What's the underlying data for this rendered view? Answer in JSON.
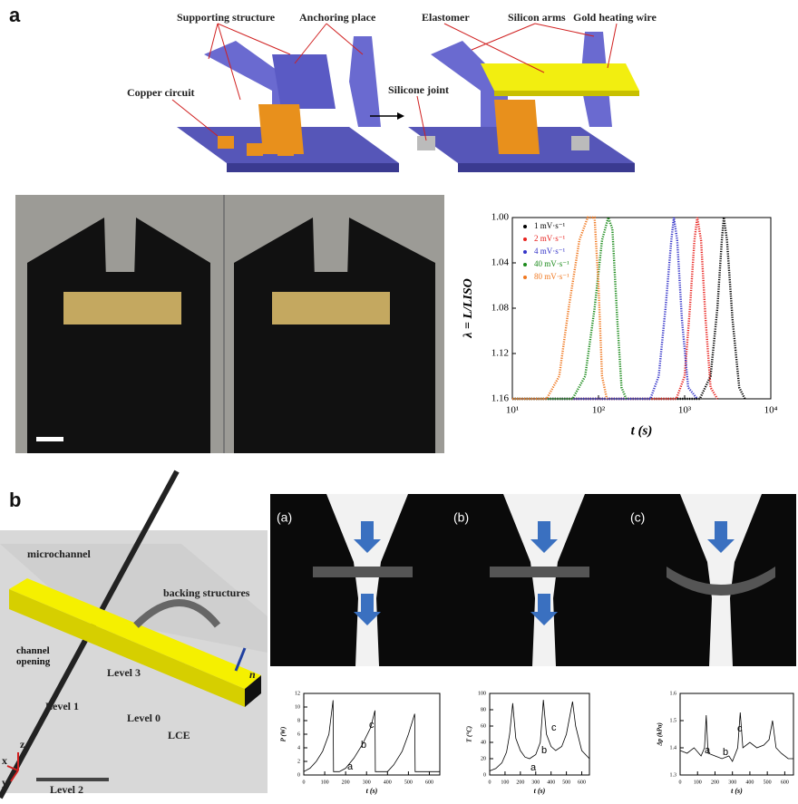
{
  "panel_a": {
    "label": "a",
    "labels": [
      "Supporting structure",
      "Anchoring place",
      "Copper circuit",
      "Elastomer",
      "Silicon arms",
      "Gold heating wire",
      "Silicone joint"
    ]
  },
  "panel_b": {
    "label": "b",
    "labels": [
      "microchannel",
      "backing structures",
      "channel opening",
      "Level 3",
      "Level 1",
      "Level 0",
      "Level 2",
      "LCE",
      "n",
      "x",
      "y",
      "z"
    ],
    "photo_labels": [
      "(a)",
      "(b)",
      "(c)"
    ]
  },
  "chart_data": [
    {
      "type": "line",
      "x_label": "t (s)",
      "y_label": "λ = L/LISO",
      "xscale": "log",
      "xlim": [
        10,
        10000
      ],
      "xticks": [
        {
          "value": 10,
          "label": "10¹"
        },
        {
          "value": 100,
          "label": "10²"
        },
        {
          "value": 1000,
          "label": "10³"
        },
        {
          "value": 10000,
          "label": "10⁴"
        }
      ],
      "ylim": [
        1.16,
        1.0
      ],
      "yticks": [
        {
          "value": 1.0,
          "label": "1.00"
        },
        {
          "value": 1.04,
          "label": "1.04"
        },
        {
          "value": 1.08,
          "label": "1.08"
        },
        {
          "value": 1.12,
          "label": "1.12"
        },
        {
          "value": 1.16,
          "label": "1.16"
        }
      ],
      "legend": "upper left",
      "series": [
        {
          "name": "1 mV·s⁻¹",
          "color": "#000000",
          "x": [
            10,
            1500,
            2000,
            2400,
            2700,
            2850,
            3100,
            3600,
            4300,
            5000
          ],
          "values": [
            1.16,
            1.16,
            1.14,
            1.08,
            1.02,
            1.0,
            1.02,
            1.09,
            1.15,
            1.16
          ]
        },
        {
          "name": "2 mV·s⁻¹",
          "color": "#e8231f",
          "x": [
            10,
            800,
            1000,
            1150,
            1300,
            1400,
            1550,
            1750,
            2000,
            2400
          ],
          "values": [
            1.16,
            1.16,
            1.14,
            1.08,
            1.02,
            1.0,
            1.02,
            1.09,
            1.15,
            1.16
          ]
        },
        {
          "name": "4 mV·s⁻¹",
          "color": "#3434c8",
          "x": [
            10,
            400,
            500,
            600,
            700,
            750,
            820,
            930,
            1100,
            1400
          ],
          "values": [
            1.16,
            1.16,
            1.14,
            1.08,
            1.02,
            1.0,
            1.02,
            1.09,
            1.15,
            1.16
          ]
        },
        {
          "name": "40 mV·s⁻¹",
          "color": "#1a8a1a",
          "x": [
            10,
            50,
            70,
            90,
            110,
            130,
            145,
            165,
            185,
            210
          ],
          "values": [
            1.16,
            1.16,
            1.14,
            1.08,
            1.02,
            1.0,
            1.01,
            1.09,
            1.15,
            1.16
          ]
        },
        {
          "name": "80 mV·s⁻¹",
          "color": "#f07820",
          "x": [
            10,
            25,
            35,
            45,
            60,
            75,
            90,
            100,
            110,
            125
          ],
          "values": [
            1.16,
            1.16,
            1.14,
            1.08,
            1.02,
            1.0,
            1.0,
            1.06,
            1.14,
            1.16
          ]
        }
      ]
    },
    {
      "type": "line",
      "x_label": "t (s)",
      "y_label": "P (W)",
      "xlim": [
        0,
        650
      ],
      "xticks": [
        0,
        100,
        200,
        300,
        400,
        500,
        600
      ],
      "ylim": [
        0,
        12
      ],
      "yticks": [
        0,
        2,
        4,
        6,
        8,
        10,
        12
      ],
      "annotations": [
        "a",
        "b",
        "c"
      ],
      "series": [
        {
          "color": "#000000",
          "x": [
            0,
            30,
            60,
            90,
            120,
            140,
            142,
            170,
            200,
            240,
            280,
            320,
            340,
            342,
            400,
            430,
            470,
            500,
            530,
            532,
            650
          ],
          "values": [
            0.5,
            1,
            2,
            3.5,
            6,
            11,
            0.5,
            0.5,
            1,
            2.5,
            4.5,
            7,
            9.5,
            0.5,
            0.5,
            1.5,
            3.5,
            6,
            9,
            0.5,
            0.5
          ]
        }
      ]
    },
    {
      "type": "line",
      "x_label": "t (s)",
      "y_label": "T (°C)",
      "xlim": [
        0,
        650
      ],
      "xticks": [
        0,
        100,
        200,
        300,
        400,
        500,
        600
      ],
      "ylim": [
        0,
        100
      ],
      "yticks": [
        0,
        20,
        40,
        60,
        80,
        100
      ],
      "annotations": [
        "a",
        "b",
        "c"
      ],
      "series": [
        {
          "color": "#000000",
          "x": [
            0,
            40,
            80,
            110,
            130,
            150,
            170,
            200,
            230,
            260,
            300,
            330,
            350,
            370,
            400,
            430,
            470,
            500,
            520,
            540,
            560,
            600,
            650
          ],
          "values": [
            5,
            8,
            15,
            28,
            50,
            88,
            45,
            30,
            22,
            20,
            25,
            40,
            92,
            50,
            35,
            30,
            35,
            50,
            70,
            90,
            60,
            30,
            20
          ]
        }
      ]
    },
    {
      "type": "line",
      "x_label": "t (s)",
      "y_label": "Δp (kPa)",
      "xlim": [
        0,
        650
      ],
      "xticks": [
        0,
        100,
        200,
        300,
        400,
        500,
        600
      ],
      "ylim": [
        1.3,
        1.6
      ],
      "yticks": [
        1.3,
        1.4,
        1.5,
        1.6
      ],
      "annotations": [
        "a",
        "b",
        "c"
      ],
      "series": [
        {
          "color": "#000000",
          "x": [
            0,
            40,
            80,
            120,
            140,
            150,
            160,
            200,
            240,
            280,
            300,
            330,
            345,
            360,
            400,
            440,
            480,
            510,
            530,
            550,
            580,
            620,
            650
          ],
          "values": [
            1.39,
            1.38,
            1.4,
            1.37,
            1.4,
            1.52,
            1.38,
            1.37,
            1.36,
            1.37,
            1.35,
            1.4,
            1.53,
            1.4,
            1.42,
            1.4,
            1.41,
            1.43,
            1.5,
            1.4,
            1.38,
            1.36,
            1.36
          ]
        }
      ]
    }
  ]
}
